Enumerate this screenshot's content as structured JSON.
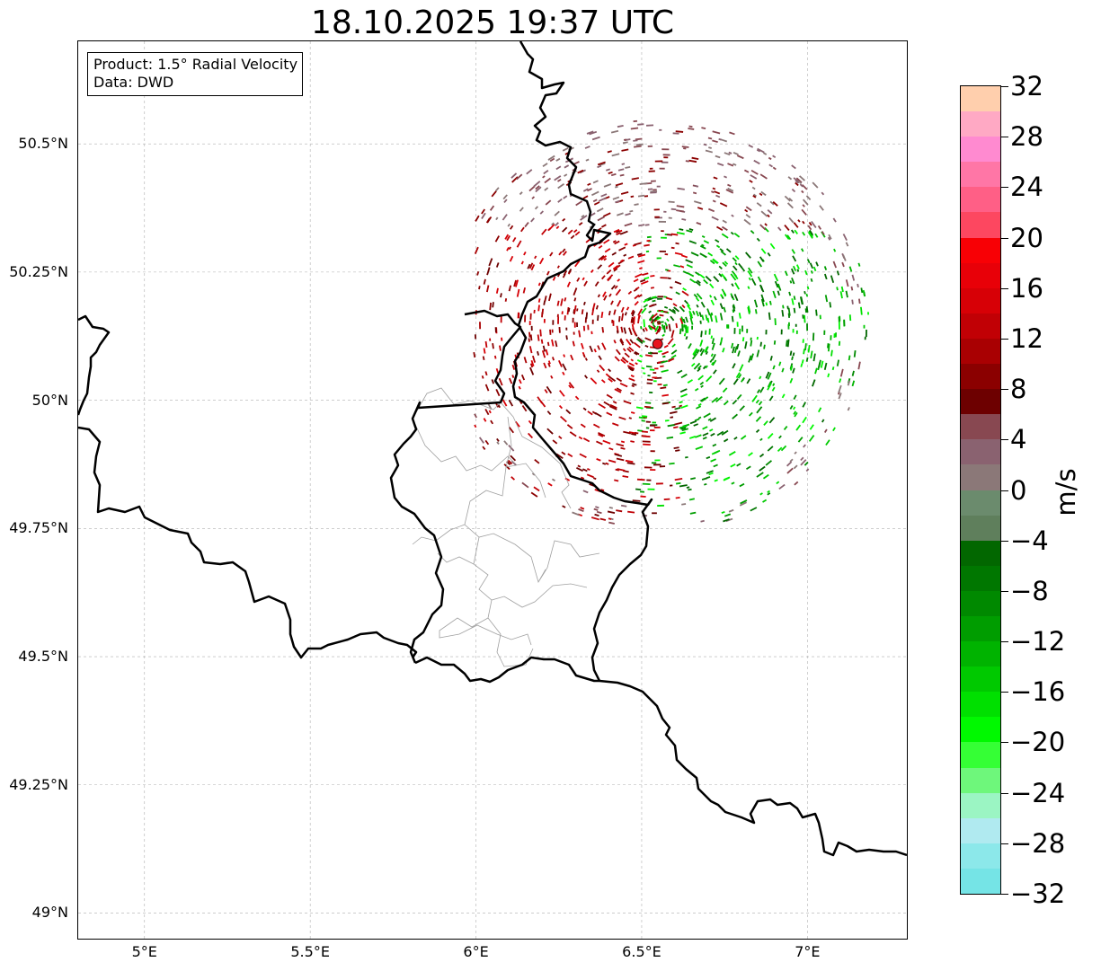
{
  "title": "18.10.2025 19:37 UTC",
  "info_box": {
    "product": "Product: 1.5° Radial Velocity",
    "data": "Data: DWD"
  },
  "map": {
    "lon_ticks": [
      "5°E",
      "5.5°E",
      "6°E",
      "6.5°E",
      "7°E"
    ],
    "lat_ticks": [
      "50.5°N",
      "50.25°N",
      "50°N",
      "49.75°N",
      "49.5°N",
      "49.25°N",
      "49°N"
    ],
    "extent": {
      "lon_min": 4.8,
      "lon_max": 7.3,
      "lat_min": 48.95,
      "lat_max": 50.7
    },
    "radar_site": {
      "lon": 6.548,
      "lat": 50.11,
      "color": "#e8141e"
    },
    "border_color": "#000000",
    "admin_border_color": "#a0a0a0",
    "gridline_color": "#b0b0b0"
  },
  "colorbar": {
    "unit": "m/s",
    "min": -32,
    "max": 32,
    "tick_labels": [
      "32",
      "28",
      "24",
      "20",
      "16",
      "12",
      "8",
      "4",
      "0",
      "−4",
      "−8",
      "−12",
      "−16",
      "−20",
      "−24",
      "−28",
      "−32"
    ],
    "colors_top_to_bottom": [
      "#ffcfad",
      "#ffa9c4",
      "#ff8ad0",
      "#ff76a6",
      "#ff5f86",
      "#fd4760",
      "#f80005",
      "#e80008",
      "#d70006",
      "#c10005",
      "#a90002",
      "#8b0000",
      "#6d0000",
      "#884851",
      "#8a6270",
      "#8b7878",
      "#6b8b6d",
      "#5f7f5c",
      "#026700",
      "#007700",
      "#008900",
      "#009d00",
      "#00b300",
      "#00c900",
      "#00e000",
      "#00f900",
      "#35ff35",
      "#6ef77b",
      "#9bf5c3",
      "#b0eaf0",
      "#8ce8ea",
      "#75e4e6"
    ]
  }
}
